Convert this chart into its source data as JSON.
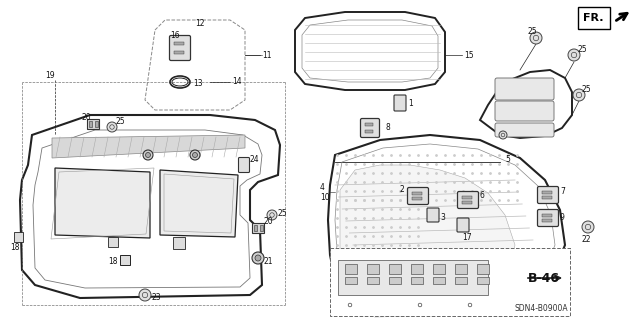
{
  "bg_color": "#ffffff",
  "diagram_code": "SDN4-B0900A",
  "fr_label": "FR.",
  "b46_label": "B-46",
  "figsize": [
    6.4,
    3.19
  ],
  "dpi": 100,
  "line_color": "#222222",
  "gray": "#888888",
  "light_gray": "#cccccc",
  "dark_gray": "#555555"
}
